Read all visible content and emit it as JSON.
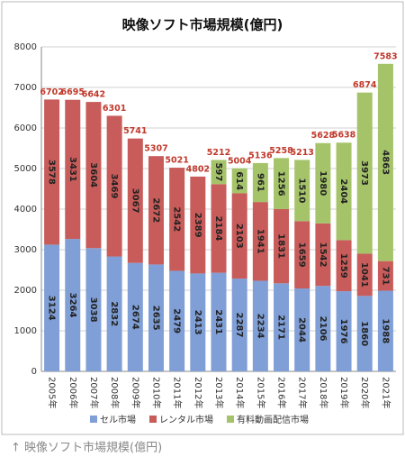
{
  "chart_data": {
    "type": "stacked_bar",
    "title": "映像ソフト市場規模(億円)",
    "categories": [
      "2005年",
      "2006年",
      "2007年",
      "2008年",
      "2009年",
      "2010年",
      "2011年",
      "2012年",
      "2013年",
      "2014年",
      "2015年",
      "2016年",
      "2017年",
      "2018年",
      "2019年",
      "2020年",
      "2021年"
    ],
    "series": [
      {
        "name": "セル市場",
        "color": "#7f9fd6",
        "values": [
          3124,
          3264,
          3038,
          2832,
          2674,
          2635,
          2479,
          2413,
          2431,
          2287,
          2234,
          2171,
          2044,
          2106,
          1976,
          1860,
          1988
        ]
      },
      {
        "name": "レンタル市場",
        "color": "#c85c5a",
        "values": [
          3578,
          3431,
          3604,
          3469,
          3067,
          2672,
          2542,
          2389,
          2184,
          2103,
          1941,
          1831,
          1659,
          1542,
          1259,
          1041,
          731
        ]
      },
      {
        "name": "有料動画配信市場",
        "color": "#a5c46a",
        "values": [
          null,
          null,
          null,
          null,
          null,
          null,
          null,
          null,
          597,
          614,
          961,
          1256,
          1510,
          1980,
          2404,
          3973,
          4863
        ]
      }
    ],
    "totals": [
      6702,
      6695,
      6642,
      6301,
      5741,
      5307,
      5021,
      4802,
      5212,
      5004,
      5136,
      5258,
      5213,
      5628,
      5638,
      6874,
      7583
    ],
    "ylim": [
      0,
      8000
    ],
    "yticks": [
      0,
      1000,
      2000,
      3000,
      4000,
      5000,
      6000,
      7000,
      8000
    ],
    "grid": true
  },
  "caption": "↑ 映像ソフト市場規模(億円)"
}
